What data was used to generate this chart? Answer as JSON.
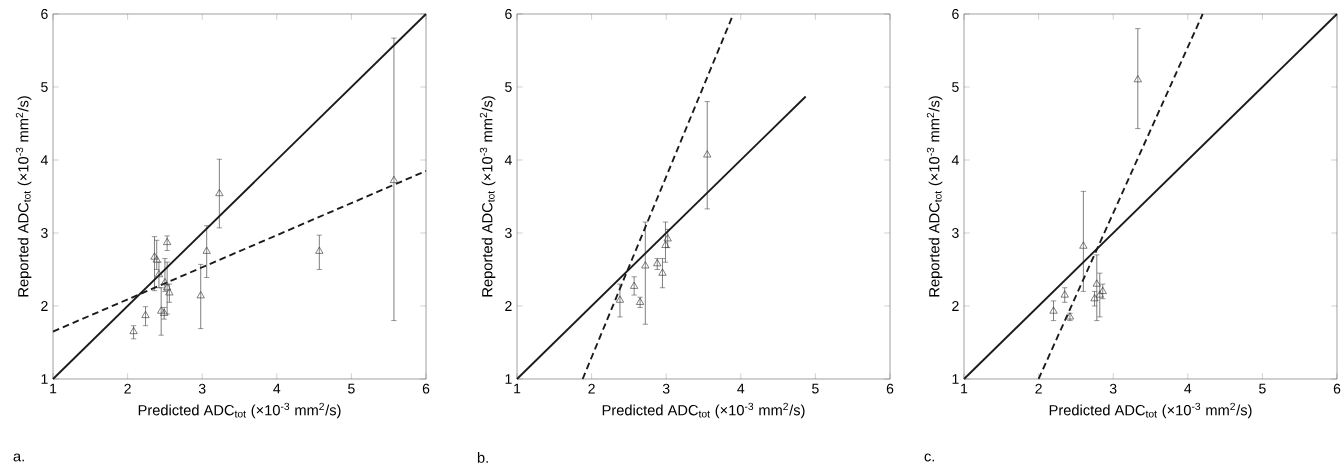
{
  "chart_data": [
    {
      "type": "scatter",
      "xlabel": "Predicted ADC$_{tot}$ (×10$^{-3}$ mm$^{2}$/s)",
      "ylabel": "Reported ADC$_{tot}$ (×10$^{-3}$ mm$^{2}$/s)",
      "xlim": [
        1,
        6
      ],
      "ylim": [
        1,
        6
      ],
      "xticks": [
        1,
        2,
        3,
        4,
        5,
        6
      ],
      "yticks": [
        1,
        2,
        3,
        4,
        5,
        6
      ],
      "grid": false,
      "annotations": [
        "a."
      ],
      "series": [
        {
          "color": "#404040",
          "marker": "triangle",
          "x": [
            2.08,
            2.24,
            2.36,
            2.39,
            2.42,
            2.45,
            2.49,
            2.53,
            2.5,
            2.53,
            2.56,
            2.98,
            3.06,
            3.23,
            4.57,
            5.57
          ],
          "values": [
            1.65,
            1.87,
            2.67,
            2.63,
            2.43,
            1.93,
            1.9,
            2.87,
            2.32,
            2.25,
            2.18,
            2.14,
            2.75,
            3.54,
            2.75,
            3.72
          ],
          "errors": [
            [
              1.55,
              1.73
            ],
            [
              1.73,
              1.99
            ],
            [
              2.21,
              2.95
            ],
            [
              2.5,
              2.9
            ],
            [
              2.25,
              2.6
            ],
            [
              1.6,
              2.25
            ],
            [
              1.82,
              1.98
            ],
            [
              2.76,
              2.96
            ],
            [
              2.2,
              2.65
            ],
            [
              1.89,
              2.6
            ],
            [
              2.05,
              2.3
            ],
            [
              1.69,
              2.57
            ],
            [
              2.39,
              3.1
            ],
            [
              3.07,
              4.01
            ],
            [
              2.5,
              2.97
            ],
            [
              1.8,
              5.67
            ]
          ]
        },
        {
          "type": "line",
          "color": "#1a1a1a",
          "marker": "none",
          "line_style": "solid",
          "x": [
            1,
            6
          ],
          "values": [
            1,
            6
          ]
        },
        {
          "type": "line",
          "color": "#1a1a1a",
          "marker": "none",
          "line_style": "dashed",
          "x": [
            1,
            6
          ],
          "values": [
            1.65,
            3.85
          ]
        }
      ]
    },
    {
      "type": "scatter",
      "xlabel": "Predicted ADC$_{tot}$ (×10$^{-3}$ mm$^{2}$/s)",
      "ylabel": "Reported ADC$_{tot}$ (×10$^{-3}$ mm$^{2}$/s)",
      "xlim": [
        1,
        6
      ],
      "ylim": [
        1,
        6
      ],
      "xticks": [
        1,
        2,
        3,
        4,
        5,
        6
      ],
      "yticks": [
        1,
        2,
        3,
        4,
        5,
        6
      ],
      "grid": false,
      "annotations": [
        "b."
      ],
      "series": [
        {
          "color": "#404040",
          "marker": "triangle",
          "x": [
            2.38,
            2.57,
            2.65,
            2.72,
            2.88,
            2.95,
            2.99,
            3.02,
            3.55
          ],
          "values": [
            2.08,
            2.27,
            2.05,
            2.55,
            2.58,
            2.45,
            2.83,
            2.92,
            4.07
          ],
          "errors": [
            [
              1.85,
              2.3
            ],
            [
              2.15,
              2.4
            ],
            [
              1.98,
              2.12
            ],
            [
              1.75,
              3.15
            ],
            [
              2.5,
              2.65
            ],
            [
              2.25,
              2.65
            ],
            [
              2.6,
              3.15
            ],
            [
              2.8,
              3.05
            ],
            [
              3.33,
              4.8
            ]
          ]
        },
        {
          "type": "line",
          "color": "#1a1a1a",
          "marker": "none",
          "line_style": "solid",
          "x": [
            1,
            4.87
          ],
          "values": [
            1,
            4.87
          ]
        },
        {
          "type": "line",
          "color": "#1a1a1a",
          "marker": "none",
          "line_style": "dashed",
          "x": [
            1.88,
            3.9
          ],
          "values": [
            1,
            6
          ]
        }
      ]
    },
    {
      "type": "scatter",
      "xlabel": "Predicted ADC$_{tot}$ (×10$^{-3}$ mm$^{2}$/s)",
      "ylabel": "Reported ADC$_{tot}$ (×10$^{-3}$ mm$^{2}$/s)",
      "xlim": [
        1,
        6
      ],
      "ylim": [
        1,
        6
      ],
      "xticks": [
        1,
        2,
        3,
        4,
        5,
        6
      ],
      "yticks": [
        1,
        2,
        3,
        4,
        5,
        6
      ],
      "grid": false,
      "annotations": [
        "c."
      ],
      "series": [
        {
          "color": "#404040",
          "marker": "triangle",
          "x": [
            2.2,
            2.35,
            2.42,
            2.6,
            2.75,
            2.78,
            2.82,
            2.86,
            3.33
          ],
          "values": [
            1.93,
            2.15,
            1.85,
            2.82,
            2.1,
            2.3,
            2.15,
            2.2,
            5.1
          ],
          "errors": [
            [
              1.8,
              2.07
            ],
            [
              2.05,
              2.25
            ],
            [
              1.8,
              1.9
            ],
            [
              2.2,
              3.57
            ],
            [
              2.0,
              2.2
            ],
            [
              1.8,
              2.7
            ],
            [
              1.85,
              2.45
            ],
            [
              2.1,
              2.3
            ],
            [
              4.43,
              5.8
            ]
          ]
        },
        {
          "type": "line",
          "color": "#1a1a1a",
          "marker": "none",
          "line_style": "solid",
          "x": [
            1,
            6
          ],
          "values": [
            1,
            6
          ]
        },
        {
          "type": "line",
          "color": "#1a1a1a",
          "marker": "none",
          "line_style": "dashed",
          "x": [
            2.0,
            4.2
          ],
          "values": [
            1,
            6
          ]
        }
      ]
    }
  ]
}
